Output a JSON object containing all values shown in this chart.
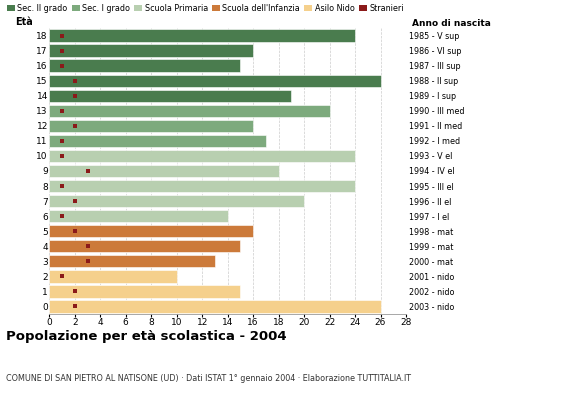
{
  "ages": [
    18,
    17,
    16,
    15,
    14,
    13,
    12,
    11,
    10,
    9,
    8,
    7,
    6,
    5,
    4,
    3,
    2,
    1,
    0
  ],
  "years": [
    "1985 - V sup",
    "1986 - VI sup",
    "1987 - III sup",
    "1988 - II sup",
    "1989 - I sup",
    "1990 - III med",
    "1991 - II med",
    "1992 - I med",
    "1993 - V el",
    "1994 - IV el",
    "1995 - III el",
    "1996 - II el",
    "1997 - I el",
    "1998 - mat",
    "1999 - mat",
    "2000 - mat",
    "2001 - nido",
    "2002 - nido",
    "2003 - nido"
  ],
  "values": [
    24,
    16,
    15,
    26,
    19,
    22,
    16,
    17,
    24,
    18,
    24,
    20,
    14,
    16,
    15,
    13,
    10,
    15,
    26
  ],
  "stranieri": [
    1,
    1,
    1,
    2,
    2,
    1,
    2,
    1,
    1,
    3,
    1,
    2,
    1,
    2,
    3,
    3,
    1,
    2,
    2
  ],
  "bar_colors": {
    "sec2": "#4a7c4e",
    "sec1": "#7daa7d",
    "primaria": "#b8cfb0",
    "infanzia": "#cc7a3a",
    "nido": "#f5d08c",
    "stranieri": "#8b1a1a"
  },
  "legend_labels": [
    "Sec. II grado",
    "Sec. I grado",
    "Scuola Primaria",
    "Scuola dell'Infanzia",
    "Asilo Nido",
    "Stranieri"
  ],
  "title": "Popolazione per età scolastica - 2004",
  "subtitle": "COMUNE DI SAN PIETRO AL NATISONE (UD) · Dati ISTAT 1° gennaio 2004 · Elaborazione TUTTITALIA.IT",
  "xlabel_eta": "Età",
  "xlabel_anno": "Anno di nascita",
  "xlim": [
    0,
    28
  ],
  "xticks": [
    0,
    2,
    4,
    6,
    8,
    10,
    12,
    14,
    16,
    18,
    20,
    22,
    24,
    26,
    28
  ],
  "background_color": "#ffffff",
  "grid_color": "#cccccc"
}
